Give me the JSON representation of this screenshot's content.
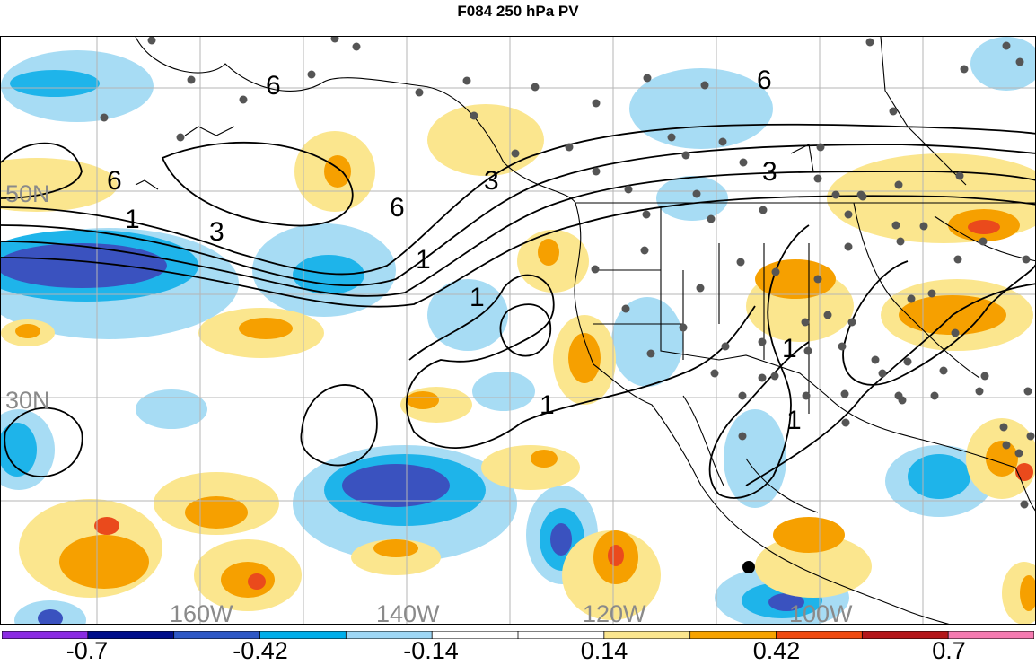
{
  "title": "F084 250 hPa PV",
  "map": {
    "lat_labels": [
      "50N",
      "30N"
    ],
    "lon_labels": [
      "160W",
      "140W",
      "120W",
      "100W"
    ],
    "contour_labels": [
      "6",
      "6",
      "6",
      "6",
      "3",
      "3",
      "3",
      "1",
      "1",
      "1",
      "1",
      "1",
      "1"
    ]
  },
  "colorbar": {
    "colors": [
      "#8a2be2",
      "#000e8a",
      "#2e58c6",
      "#00aeea",
      "#9ed7f5",
      "#ffffff",
      "#ffffff",
      "#fbe68e",
      "#f7a300",
      "#f04a10",
      "#b4161a",
      "#f57ab0"
    ],
    "tick_labels": [
      "-0.7",
      "-0.42",
      "-0.14",
      "0.14",
      "0.42",
      "0.7"
    ]
  },
  "palette": {
    "light_blue": "#a7dcf4",
    "mid_blue": "#1eb4ea",
    "dark_blue": "#3a52bf",
    "light_yellow": "#fbe68e",
    "orange": "#f6a000",
    "red_orange": "#ea4a1c"
  }
}
